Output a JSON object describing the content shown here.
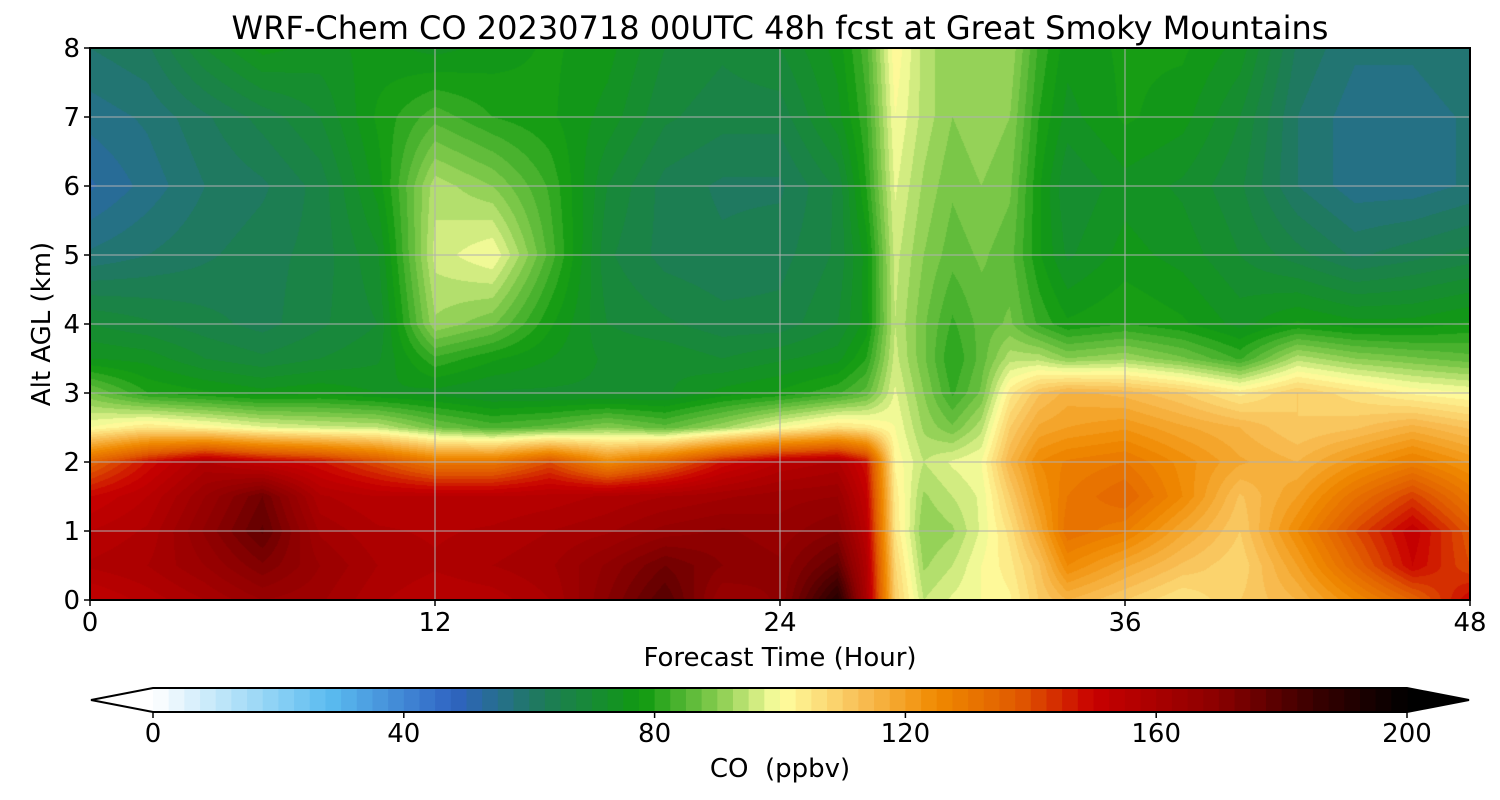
{
  "chart_data": {
    "type": "heatmap",
    "title": "WRF-Chem CO  20230718 00UTC 48h fcst at Great Smoky Mountains",
    "xlabel": "Forecast Time (Hour)",
    "ylabel": "Alt AGL (km)",
    "xlim": [
      0,
      48
    ],
    "ylim": [
      0,
      8
    ],
    "xticks": [
      0,
      12,
      24,
      36,
      48
    ],
    "yticks": [
      0,
      1,
      2,
      3,
      4,
      5,
      6,
      7,
      8
    ],
    "grid": true,
    "colorbar": {
      "label": "CO  (ppbv)",
      "range": [
        0,
        200
      ],
      "ticks": [
        0,
        40,
        80,
        120,
        160,
        200
      ],
      "extend": "both",
      "orientation": "horizontal",
      "colors": [
        {
          "v": 0,
          "c": "#ffffff"
        },
        {
          "v": 15,
          "c": "#a6dcf7"
        },
        {
          "v": 28,
          "c": "#5bbcf0"
        },
        {
          "v": 48,
          "c": "#2f63c2"
        },
        {
          "v": 62,
          "c": "#1e7a5a"
        },
        {
          "v": 78,
          "c": "#109a10"
        },
        {
          "v": 90,
          "c": "#86cc4e"
        },
        {
          "v": 100,
          "c": "#ffffa0"
        },
        {
          "v": 112,
          "c": "#f9c25a"
        },
        {
          "v": 125,
          "c": "#f08a00"
        },
        {
          "v": 138,
          "c": "#e05a00"
        },
        {
          "v": 150,
          "c": "#c80000"
        },
        {
          "v": 170,
          "c": "#8a0000"
        },
        {
          "v": 185,
          "c": "#3a0000"
        },
        {
          "v": 200,
          "c": "#000000"
        }
      ]
    },
    "x": [
      0,
      2,
      4,
      6,
      8,
      10,
      12,
      14,
      16,
      18,
      20,
      22,
      24,
      26,
      27,
      28,
      29,
      30,
      31,
      32,
      33,
      34,
      36,
      38,
      40,
      42,
      44,
      46,
      48
    ],
    "y": [
      0,
      0.5,
      1,
      1.5,
      2,
      2.5,
      3,
      3.5,
      4,
      5,
      6,
      7,
      8
    ],
    "z": [
      [
        152,
        156,
        160,
        165,
        163,
        158,
        155,
        156,
        160,
        170,
        180,
        165,
        168,
        190,
        160,
        110,
        95,
        98,
        100,
        102,
        110,
        115,
        110,
        105,
        110,
        115,
        125,
        135,
        150
      ],
      [
        158,
        160,
        165,
        172,
        165,
        160,
        158,
        160,
        162,
        168,
        175,
        170,
        168,
        178,
        158,
        108,
        92,
        95,
        100,
        104,
        112,
        125,
        118,
        112,
        108,
        120,
        135,
        150,
        140
      ],
      [
        155,
        158,
        168,
        178,
        162,
        158,
        157,
        158,
        160,
        162,
        166,
        168,
        166,
        170,
        155,
        105,
        90,
        92,
        98,
        106,
        118,
        132,
        128,
        118,
        110,
        125,
        140,
        152,
        138
      ],
      [
        150,
        155,
        165,
        175,
        158,
        155,
        155,
        155,
        156,
        158,
        160,
        162,
        164,
        165,
        152,
        104,
        92,
        95,
        98,
        110,
        122,
        130,
        135,
        125,
        112,
        120,
        132,
        142,
        130
      ],
      [
        135,
        148,
        158,
        152,
        148,
        140,
        130,
        130,
        140,
        125,
        135,
        148,
        155,
        158,
        148,
        102,
        95,
        98,
        100,
        115,
        125,
        128,
        130,
        124,
        118,
        115,
        122,
        128,
        122
      ],
      [
        100,
        105,
        102,
        98,
        96,
        95,
        88,
        84,
        86,
        90,
        86,
        92,
        100,
        106,
        104,
        100,
        92,
        88,
        94,
        110,
        118,
        120,
        122,
        118,
        115,
        110,
        112,
        116,
        112
      ],
      [
        88,
        80,
        78,
        76,
        77,
        75,
        74,
        72,
        72,
        72,
        72,
        76,
        78,
        82,
        86,
        98,
        90,
        82,
        88,
        104,
        112,
        116,
        114,
        110,
        104,
        110,
        106,
        102,
        100
      ],
      [
        75,
        74,
        70,
        68,
        70,
        72,
        82,
        78,
        75,
        72,
        72,
        70,
        72,
        74,
        80,
        96,
        88,
        80,
        86,
        94,
        94,
        90,
        92,
        88,
        82,
        94,
        90,
        88,
        86
      ],
      [
        70,
        68,
        66,
        64,
        67,
        70,
        92,
        88,
        78,
        70,
        68,
        66,
        66,
        70,
        76,
        95,
        88,
        82,
        86,
        88,
        82,
        78,
        80,
        78,
        74,
        78,
        76,
        76,
        78
      ],
      [
        58,
        60,
        62,
        64,
        66,
        72,
        96,
        100,
        84,
        68,
        64,
        63,
        64,
        68,
        76,
        96,
        90,
        86,
        88,
        86,
        78,
        72,
        76,
        74,
        70,
        66,
        62,
        64,
        66
      ],
      [
        52,
        56,
        60,
        62,
        66,
        76,
        94,
        90,
        82,
        70,
        64,
        62,
        62,
        68,
        80,
        98,
        92,
        88,
        90,
        88,
        78,
        70,
        74,
        72,
        68,
        60,
        56,
        56,
        58
      ],
      [
        56,
        58,
        62,
        66,
        70,
        78,
        84,
        80,
        78,
        74,
        68,
        66,
        66,
        74,
        82,
        100,
        94,
        90,
        92,
        90,
        80,
        74,
        78,
        76,
        70,
        60,
        56,
        56,
        58
      ],
      [
        60,
        62,
        70,
        76,
        74,
        76,
        74,
        76,
        78,
        76,
        70,
        68,
        70,
        76,
        84,
        102,
        94,
        90,
        92,
        92,
        82,
        76,
        78,
        78,
        74,
        62,
        58,
        58,
        60
      ]
    ]
  }
}
